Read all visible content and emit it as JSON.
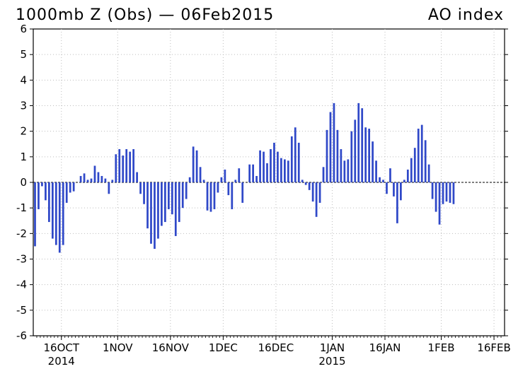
{
  "colors": {
    "bar": "#2f48c8",
    "axis": "#000000",
    "grid": "#bdbdbd",
    "background": "#ffffff"
  },
  "chart_data": {
    "type": "bar",
    "title": "1000mb Z (Obs) — 06Feb2015",
    "title_right": "AO index",
    "xlabel": "",
    "ylabel": "",
    "ylim": [
      -6,
      6
    ],
    "y_ticks": [
      -6,
      -5,
      -4,
      -3,
      -2,
      -1,
      0,
      1,
      2,
      3,
      4,
      5,
      6
    ],
    "grid": true,
    "zero_line": "dashed",
    "x_range": [
      "2014-10-08",
      "2015-02-19"
    ],
    "x_ticks": [
      {
        "date": "2014-10-16",
        "label": "16OCT",
        "sublabel": "2014"
      },
      {
        "date": "2014-11-01",
        "label": "1NOV",
        "sublabel": ""
      },
      {
        "date": "2014-11-16",
        "label": "16NOV",
        "sublabel": ""
      },
      {
        "date": "2014-12-01",
        "label": "1DEC",
        "sublabel": ""
      },
      {
        "date": "2014-12-16",
        "label": "16DEC",
        "sublabel": ""
      },
      {
        "date": "2015-01-01",
        "label": "1JAN",
        "sublabel": "2015"
      },
      {
        "date": "2015-01-16",
        "label": "16JAN",
        "sublabel": ""
      },
      {
        "date": "2015-02-01",
        "label": "1FEB",
        "sublabel": ""
      },
      {
        "date": "2015-02-16",
        "label": "16FEB",
        "sublabel": ""
      }
    ],
    "series": [
      {
        "start_date": "2014-10-08",
        "interval": "1 day",
        "values": [
          -2.5,
          -1.05,
          -0.15,
          -0.7,
          -1.55,
          -2.2,
          -2.45,
          -2.75,
          -2.45,
          -0.8,
          -0.4,
          -0.35,
          0.0,
          0.25,
          0.35,
          0.1,
          0.15,
          0.65,
          0.4,
          0.25,
          0.15,
          -0.45,
          0.1,
          1.1,
          1.3,
          1.05,
          1.3,
          1.2,
          1.3,
          0.4,
          -0.45,
          -0.85,
          -1.8,
          -2.4,
          -2.6,
          -2.2,
          -1.7,
          -1.55,
          -1.05,
          -1.25,
          -2.1,
          -1.55,
          -1.0,
          -0.65,
          0.2,
          1.4,
          1.25,
          0.6,
          0.1,
          -1.1,
          -1.15,
          -1.05,
          -0.4,
          0.2,
          0.5,
          -0.5,
          -1.05,
          0.1,
          0.55,
          -0.8,
          0.0,
          0.7,
          0.7,
          0.25,
          1.25,
          1.2,
          0.75,
          1.3,
          1.55,
          1.2,
          0.95,
          0.9,
          0.85,
          1.8,
          2.15,
          1.55,
          0.1,
          -0.1,
          -0.3,
          -0.75,
          -1.35,
          -0.8,
          0.6,
          2.05,
          2.75,
          3.1,
          2.05,
          1.3,
          0.85,
          0.9,
          2.0,
          2.45,
          3.1,
          2.9,
          2.15,
          2.1,
          1.6,
          0.85,
          0.2,
          0.1,
          -0.45,
          0.55,
          -0.55,
          -1.6,
          -0.7,
          0.1,
          0.5,
          0.95,
          1.35,
          2.1,
          2.25,
          1.65,
          0.7,
          -0.65,
          -1.15,
          -1.65,
          -0.85,
          -0.75,
          -0.8,
          -0.85
        ]
      }
    ]
  }
}
